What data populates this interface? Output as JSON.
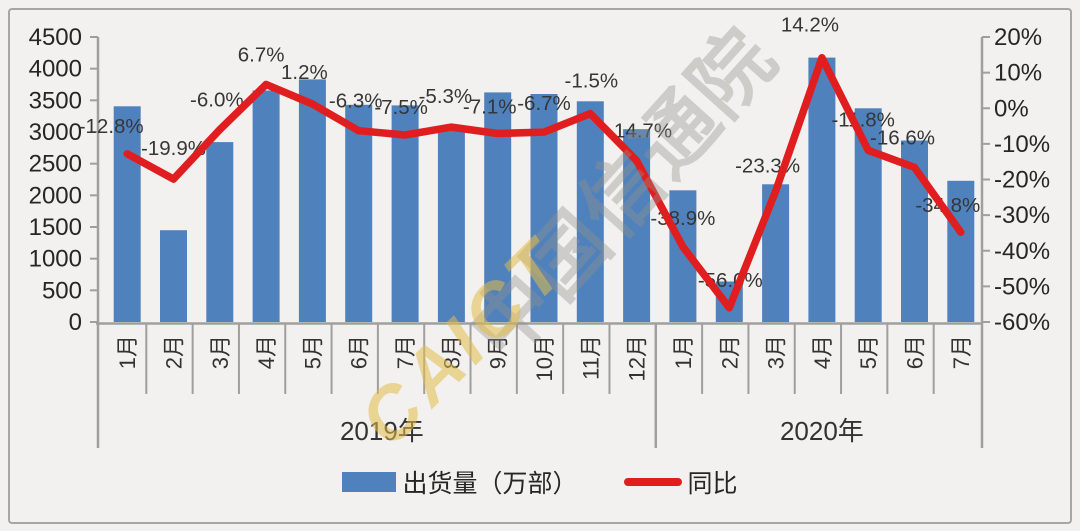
{
  "watermark": {
    "text_cn": "中国信通院",
    "text_en": "CAICT"
  },
  "colors": {
    "bar": "#4f81bd",
    "line": "#e01e20",
    "axis": "#9f9f9f",
    "tick_text": "#262626",
    "data_label": "#363636",
    "month_text": "#333333",
    "year_text": "#333333",
    "background": "#f2f1ef",
    "frame_border": "#a6a6a6",
    "watermark_gray": "rgba(148,145,138,0.38)",
    "watermark_gold": "rgba(226,188,72,0.55)"
  },
  "chart_data": {
    "type": "bar+line combo",
    "categories": [
      "1月",
      "2月",
      "3月",
      "4月",
      "5月",
      "6月",
      "7月",
      "8月",
      "9月",
      "10月",
      "11月",
      "12月",
      "1月",
      "2月",
      "3月",
      "4月",
      "5月",
      "6月",
      "7月"
    ],
    "year_groups": [
      {
        "label": "2019年",
        "months": 12
      },
      {
        "label": "2020年",
        "months": 7
      }
    ],
    "series": [
      {
        "name": "出货量（万部）",
        "type": "bar",
        "axis": "left",
        "values": [
          3405,
          1450,
          2840,
          3655,
          3830,
          3430,
          3420,
          3090,
          3625,
          3600,
          3485,
          3045,
          2080,
          640,
          2175,
          4175,
          3375,
          2865,
          2230
        ]
      },
      {
        "name": "同比",
        "type": "line",
        "axis": "right",
        "values": [
          -12.8,
          -19.9,
          -6.0,
          6.7,
          1.2,
          -6.3,
          -7.5,
          -5.3,
          -7.1,
          -6.7,
          -1.5,
          -14.7,
          -38.9,
          -56.0,
          -23.3,
          14.2,
          -11.8,
          -16.6,
          -34.8
        ],
        "labels": [
          "-12.8%",
          "-19.9%",
          "-6.0%",
          "6.7%",
          "1.2%",
          "-6.3%",
          "-7.5%",
          "-5.3%",
          "-7.1%",
          "-6.7%",
          "-1.5%",
          "-14.7%",
          "-38.9%",
          "-56.0%",
          "-23.3%",
          "14.2%",
          "-11.8%",
          "-16.6%",
          "-34.8%"
        ]
      }
    ],
    "left_axis": {
      "min": 0,
      "max": 4500,
      "step": 500,
      "ticks": [
        "4500",
        "4000",
        "3500",
        "3000",
        "2500",
        "2000",
        "1500",
        "1000",
        "500",
        "0"
      ]
    },
    "right_axis": {
      "min": -60,
      "max": 20,
      "step": 10,
      "ticks": [
        "20%",
        "10%",
        "0%",
        "-10%",
        "-20%",
        "-30%",
        "-40%",
        "-50%",
        "-60%"
      ]
    },
    "grid": "off",
    "legend_position": "bottom-center"
  }
}
